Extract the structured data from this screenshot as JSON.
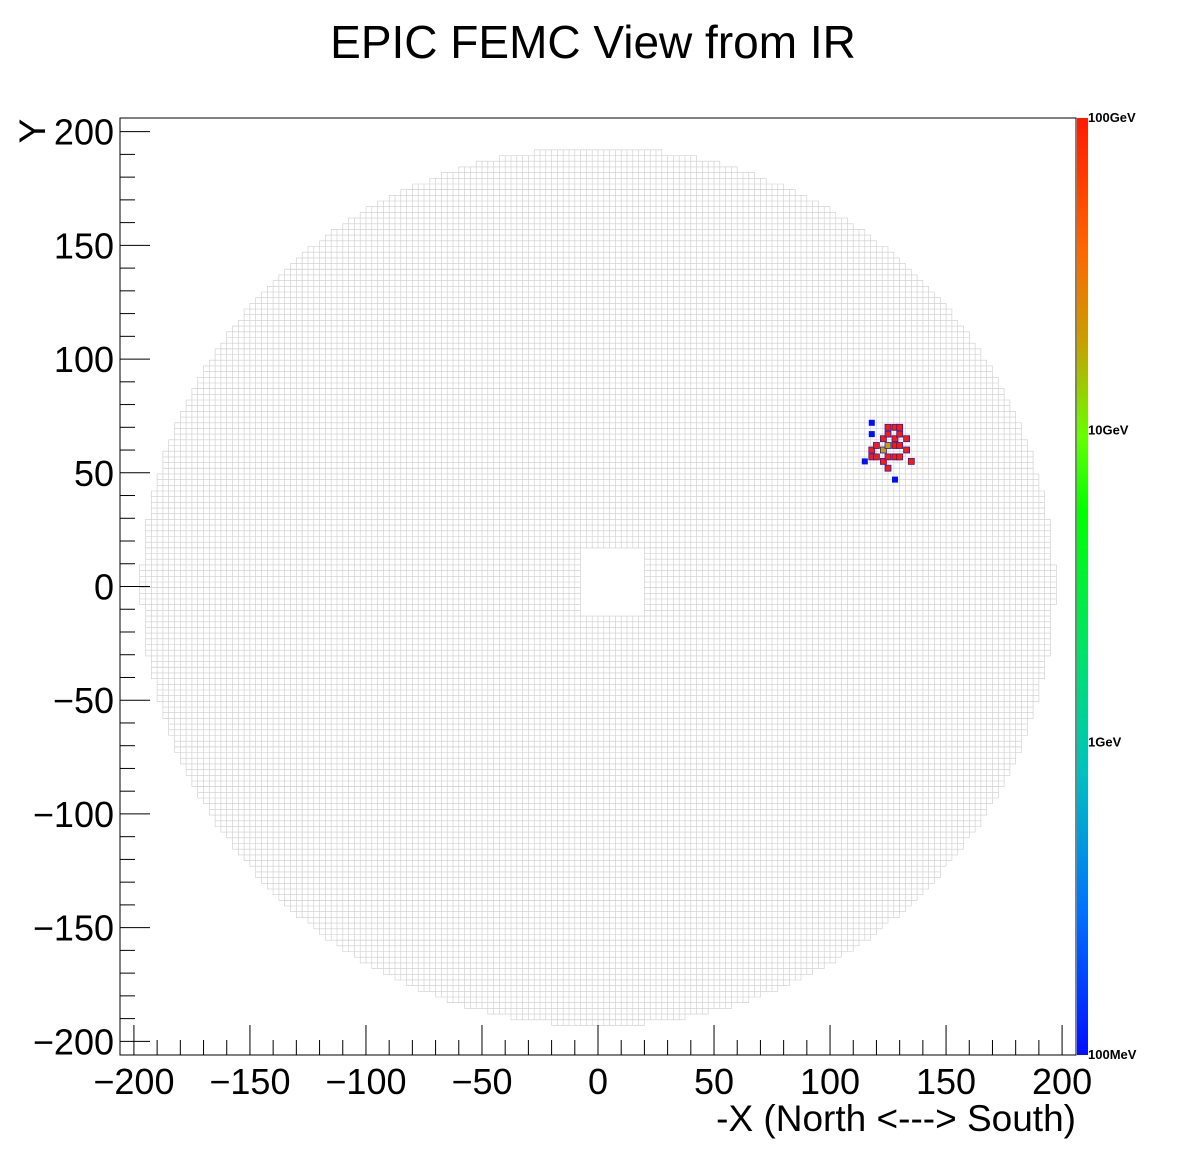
{
  "chart_data": {
    "type": "heatmap",
    "title": "EPIC FEMC View from IR",
    "xlabel": "-X (North <---> South)",
    "ylabel": "Y",
    "xlim": [
      -206,
      206
    ],
    "ylim": [
      -206,
      206
    ],
    "x_ticks": [
      -200,
      -150,
      -100,
      -50,
      0,
      50,
      100,
      150,
      200
    ],
    "y_ticks": [
      -200,
      -150,
      -100,
      -50,
      0,
      50,
      100,
      150,
      200
    ],
    "x_tick_labels": [
      "−200",
      "−150",
      "−100",
      "−50",
      "0",
      "50",
      "100",
      "150",
      "200"
    ],
    "y_tick_labels": [
      "−200",
      "−150",
      "−100",
      "−50",
      "0",
      "50",
      "100",
      "150",
      "200"
    ],
    "colorbar": {
      "scale": "log",
      "labels": [
        "100GeV",
        "10GeV",
        "1GeV",
        "100MeV"
      ],
      "colors": [
        "#ff1a00",
        "#ff6600",
        "#c8a000",
        "#66ff00",
        "#00ff00",
        "#00e080",
        "#00c8c8",
        "#0080ff",
        "#0000ff"
      ]
    },
    "detector": {
      "cell_size_cm": 2.5,
      "outer_radius_cm": 198,
      "inner_hole": {
        "x": [
          -7.5,
          20
        ],
        "y": [
          -15,
          15
        ]
      },
      "grid_color": "#cccccc"
    },
    "hits": [
      {
        "x": 115,
        "y": 55,
        "e": "low"
      },
      {
        "x": 118,
        "y": 72,
        "e": "low"
      },
      {
        "x": 118,
        "y": 67,
        "e": "low"
      },
      {
        "x": 128,
        "y": 47,
        "e": "low"
      },
      {
        "x": 118,
        "y": 60,
        "e": "high"
      },
      {
        "x": 118,
        "y": 57,
        "e": "high"
      },
      {
        "x": 120,
        "y": 62,
        "e": "high"
      },
      {
        "x": 120,
        "y": 57,
        "e": "high"
      },
      {
        "x": 123,
        "y": 65,
        "e": "high"
      },
      {
        "x": 123,
        "y": 60,
        "e": "mid"
      },
      {
        "x": 123,
        "y": 55,
        "e": "high"
      },
      {
        "x": 125,
        "y": 70,
        "e": "high"
      },
      {
        "x": 125,
        "y": 67,
        "e": "high"
      },
      {
        "x": 125,
        "y": 62,
        "e": "mid"
      },
      {
        "x": 125,
        "y": 57,
        "e": "high"
      },
      {
        "x": 125,
        "y": 52,
        "e": "high"
      },
      {
        "x": 128,
        "y": 70,
        "e": "high"
      },
      {
        "x": 128,
        "y": 65,
        "e": "high"
      },
      {
        "x": 128,
        "y": 62,
        "e": "high"
      },
      {
        "x": 128,
        "y": 57,
        "e": "high"
      },
      {
        "x": 130,
        "y": 70,
        "e": "high"
      },
      {
        "x": 130,
        "y": 67,
        "e": "high"
      },
      {
        "x": 130,
        "y": 62,
        "e": "high"
      },
      {
        "x": 130,
        "y": 57,
        "e": "high"
      },
      {
        "x": 133,
        "y": 65,
        "e": "high"
      },
      {
        "x": 133,
        "y": 60,
        "e": "high"
      },
      {
        "x": 135,
        "y": 55,
        "e": "high"
      }
    ]
  }
}
